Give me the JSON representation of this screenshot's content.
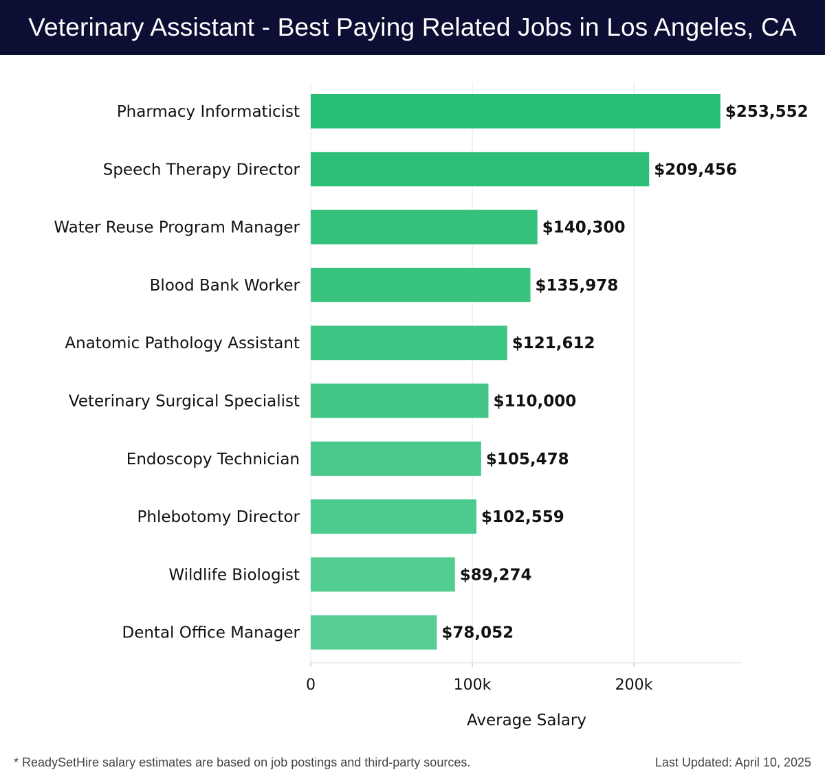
{
  "header": {
    "title": "Veterinary Assistant - Best Paying Related Jobs in Los Angeles, CA"
  },
  "chart_data": {
    "type": "bar",
    "orientation": "horizontal",
    "categories": [
      "Pharmacy Informaticist",
      "Speech Therapy Director",
      "Water Reuse Program Manager",
      "Blood Bank Worker",
      "Anatomic Pathology Assistant",
      "Veterinary Surgical Specialist",
      "Endoscopy Technician",
      "Phlebotomy Director",
      "Wildlife Biologist",
      "Dental Office Manager"
    ],
    "values": [
      253552,
      209456,
      140300,
      135978,
      121612,
      110000,
      105478,
      102559,
      89274,
      78052
    ],
    "value_labels": [
      "$253,552",
      "$209,456",
      "$140,300",
      "$135,978",
      "$121,612",
      "$110,000",
      "$105,478",
      "$102,559",
      "$89,274",
      "$78,052"
    ],
    "xlabel": "Average Salary",
    "ylabel": "",
    "xlim": [
      0,
      267000
    ],
    "x_ticks": [
      0,
      100000,
      200000
    ],
    "x_tick_labels": [
      "0",
      "100k",
      "200k"
    ],
    "grid": "vertical",
    "legend": "none",
    "colors": {
      "bar_top": "#28bd74",
      "bar_bottom": "#58cf96",
      "grid": "#e6e6e6"
    }
  },
  "footer": {
    "note": "* ReadySetHire salary estimates are based on job postings and third-party sources.",
    "updated": "Last Updated: April 10, 2025"
  }
}
